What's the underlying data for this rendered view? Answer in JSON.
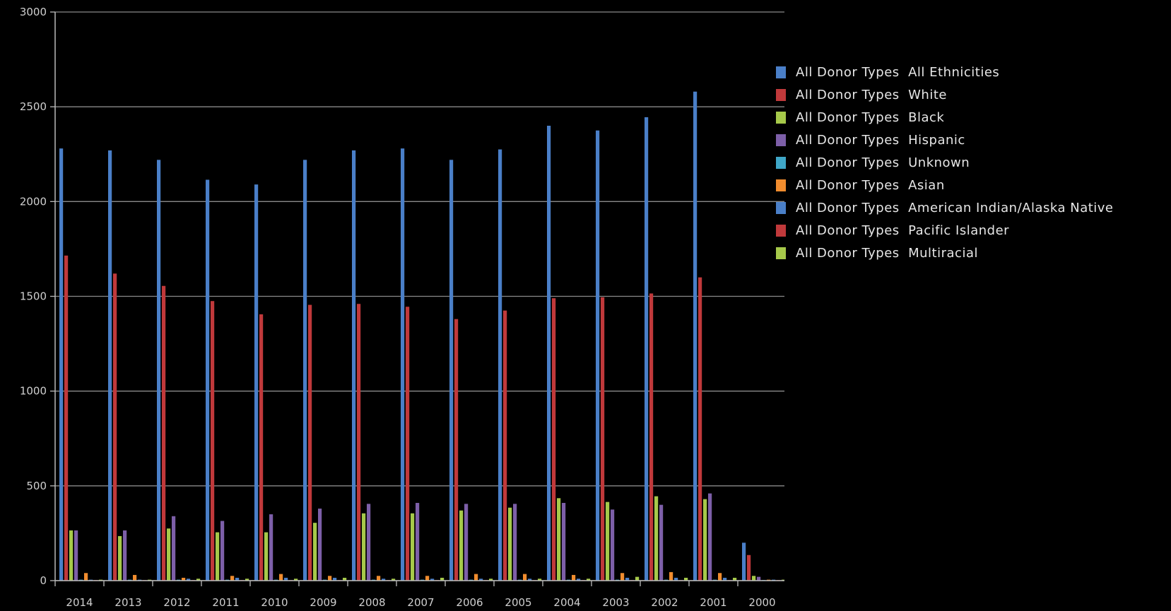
{
  "chart_data": {
    "type": "bar",
    "title": "",
    "xlabel": "",
    "ylabel": "",
    "ylim": [
      0,
      3000
    ],
    "yticks": [
      "0",
      "500",
      "1000",
      "1500",
      "2000",
      "2500",
      "3000"
    ],
    "grid": true,
    "legend_position": "right",
    "categories": [
      "2014",
      "2013",
      "2012",
      "2011",
      "2010",
      "2009",
      "2008",
      "2007",
      "2006",
      "2005",
      "2004",
      "2003",
      "2002",
      "2001",
      "2000"
    ],
    "series": [
      {
        "name": "All Donor Types  All Ethnicities",
        "color": "#4a7fc8",
        "values": [
          2280,
          2270,
          2220,
          2115,
          2090,
          2220,
          2270,
          2280,
          2220,
          2275,
          2400,
          2375,
          2445,
          2580,
          200
        ]
      },
      {
        "name": "All Donor Types  White",
        "color": "#c0393b",
        "values": [
          1715,
          1620,
          1555,
          1475,
          1405,
          1455,
          1460,
          1445,
          1380,
          1425,
          1490,
          1495,
          1515,
          1600,
          135
        ]
      },
      {
        "name": "All Donor Types  Black",
        "color": "#a6c94a",
        "values": [
          265,
          235,
          275,
          255,
          255,
          305,
          355,
          355,
          370,
          385,
          435,
          415,
          445,
          430,
          25
        ]
      },
      {
        "name": "All Donor Types  Hispanic",
        "color": "#7d5fa8",
        "values": [
          265,
          265,
          340,
          315,
          350,
          380,
          405,
          410,
          405,
          405,
          410,
          375,
          400,
          460,
          20
        ]
      },
      {
        "name": "All Donor Types  Unknown",
        "color": "#3fa7c8",
        "values": [
          5,
          5,
          5,
          5,
          5,
          5,
          5,
          5,
          5,
          5,
          5,
          5,
          5,
          5,
          2
        ]
      },
      {
        "name": "All Donor Types  Asian",
        "color": "#f08c2e",
        "values": [
          40,
          30,
          15,
          25,
          35,
          25,
          25,
          25,
          35,
          35,
          30,
          40,
          45,
          40,
          5
        ]
      },
      {
        "name": "All Donor Types  American Indian/Alaska Native",
        "color": "#4a7fc8",
        "values": [
          5,
          5,
          10,
          15,
          15,
          15,
          10,
          10,
          10,
          10,
          10,
          15,
          15,
          15,
          5
        ]
      },
      {
        "name": "All Donor Types  Pacific Islander",
        "color": "#c0393b",
        "values": [
          2,
          2,
          2,
          2,
          2,
          2,
          2,
          2,
          2,
          2,
          2,
          2,
          2,
          2,
          1
        ]
      },
      {
        "name": "All Donor Types  Multiracial",
        "color": "#a6c94a",
        "values": [
          5,
          5,
          10,
          10,
          10,
          15,
          10,
          15,
          10,
          10,
          10,
          20,
          15,
          15,
          5
        ]
      }
    ]
  }
}
